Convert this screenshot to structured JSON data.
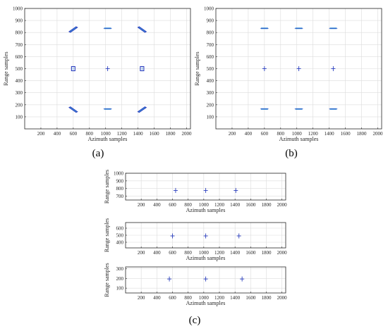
{
  "figure": {
    "captions": [
      "(a)",
      "(b)",
      "(c)"
    ]
  },
  "colors": {
    "mark": "#2b3fbf",
    "mark_light": "#3c8fd6",
    "grid": "#dcdcdc",
    "axis": "#262626"
  },
  "chart_data": [
    {
      "id": "a",
      "type": "scatter",
      "caption": "(a)",
      "xlabel": "Azimuth samples",
      "ylabel": "Range samples",
      "xlim": [
        0,
        2048
      ],
      "ylim": [
        0,
        1000
      ],
      "xticks": [
        200,
        400,
        600,
        800,
        1000,
        1200,
        1400,
        1600,
        1800,
        2000
      ],
      "yticks": [
        100,
        200,
        300,
        400,
        500,
        600,
        700,
        800,
        900,
        1000
      ],
      "grid": true,
      "targets": [
        {
          "x": 600,
          "y": 825,
          "shape": "slant",
          "dir": 1
        },
        {
          "x": 1025,
          "y": 835,
          "shape": "hbar"
        },
        {
          "x": 1450,
          "y": 825,
          "shape": "slant",
          "dir": -1
        },
        {
          "x": 600,
          "y": 500,
          "shape": "box"
        },
        {
          "x": 1025,
          "y": 500,
          "shape": "cross"
        },
        {
          "x": 1450,
          "y": 500,
          "shape": "box"
        },
        {
          "x": 600,
          "y": 160,
          "shape": "slant",
          "dir": -1
        },
        {
          "x": 1025,
          "y": 165,
          "shape": "hbar"
        },
        {
          "x": 1450,
          "y": 160,
          "shape": "slant",
          "dir": 1
        }
      ]
    },
    {
      "id": "b",
      "type": "scatter",
      "caption": "(b)",
      "xlabel": "Azimuth samples",
      "ylabel": "Range samples",
      "xlim": [
        0,
        2048
      ],
      "ylim": [
        0,
        1000
      ],
      "xticks": [
        200,
        400,
        600,
        800,
        1000,
        1200,
        1400,
        1600,
        1800,
        2000
      ],
      "yticks": [
        100,
        200,
        300,
        400,
        500,
        600,
        700,
        800,
        900,
        1000
      ],
      "grid": true,
      "targets": [
        {
          "x": 600,
          "y": 835,
          "shape": "hbar"
        },
        {
          "x": 1025,
          "y": 835,
          "shape": "hbar"
        },
        {
          "x": 1450,
          "y": 835,
          "shape": "hbar"
        },
        {
          "x": 600,
          "y": 500,
          "shape": "cross"
        },
        {
          "x": 1025,
          "y": 500,
          "shape": "cross"
        },
        {
          "x": 1450,
          "y": 500,
          "shape": "cross"
        },
        {
          "x": 600,
          "y": 165,
          "shape": "hbar"
        },
        {
          "x": 1025,
          "y": 165,
          "shape": "hbar"
        },
        {
          "x": 1450,
          "y": 165,
          "shape": "hbar"
        }
      ]
    },
    {
      "id": "c1",
      "type": "scatter",
      "xlabel": "Azimuth samples",
      "ylabel": "Range samples",
      "xlim": [
        0,
        2048
      ],
      "ylim": [
        650,
        1000
      ],
      "xticks": [
        200,
        400,
        600,
        800,
        1000,
        1200,
        1400,
        1600,
        1800,
        2000
      ],
      "yticks": [
        700,
        800,
        900,
        1000
      ],
      "grid": true,
      "targets": [
        {
          "x": 640,
          "y": 775,
          "shape": "cross"
        },
        {
          "x": 1025,
          "y": 775,
          "shape": "cross"
        },
        {
          "x": 1410,
          "y": 775,
          "shape": "cross"
        }
      ]
    },
    {
      "id": "c2",
      "type": "scatter",
      "xlabel": "Azimuth samples",
      "ylabel": "Range samples",
      "xlim": [
        0,
        2048
      ],
      "ylim": [
        320,
        680
      ],
      "xticks": [
        200,
        400,
        600,
        800,
        1000,
        1200,
        1400,
        1600,
        1800,
        2000
      ],
      "yticks": [
        400,
        500,
        600
      ],
      "grid": true,
      "targets": [
        {
          "x": 600,
          "y": 490,
          "shape": "cross"
        },
        {
          "x": 1025,
          "y": 490,
          "shape": "cross"
        },
        {
          "x": 1450,
          "y": 490,
          "shape": "cross"
        }
      ]
    },
    {
      "id": "c3",
      "type": "scatter",
      "caption": "(c)",
      "xlabel": "Azimuth samples",
      "ylabel": "Range samples",
      "xlim": [
        0,
        2048
      ],
      "ylim": [
        50,
        320
      ],
      "xticks": [
        200,
        400,
        600,
        800,
        1000,
        1200,
        1400,
        1600,
        1800,
        2000
      ],
      "yticks": [
        100,
        200,
        300
      ],
      "grid": true,
      "targets": [
        {
          "x": 560,
          "y": 195,
          "shape": "cross"
        },
        {
          "x": 1025,
          "y": 195,
          "shape": "cross"
        },
        {
          "x": 1490,
          "y": 195,
          "shape": "cross"
        }
      ]
    }
  ]
}
